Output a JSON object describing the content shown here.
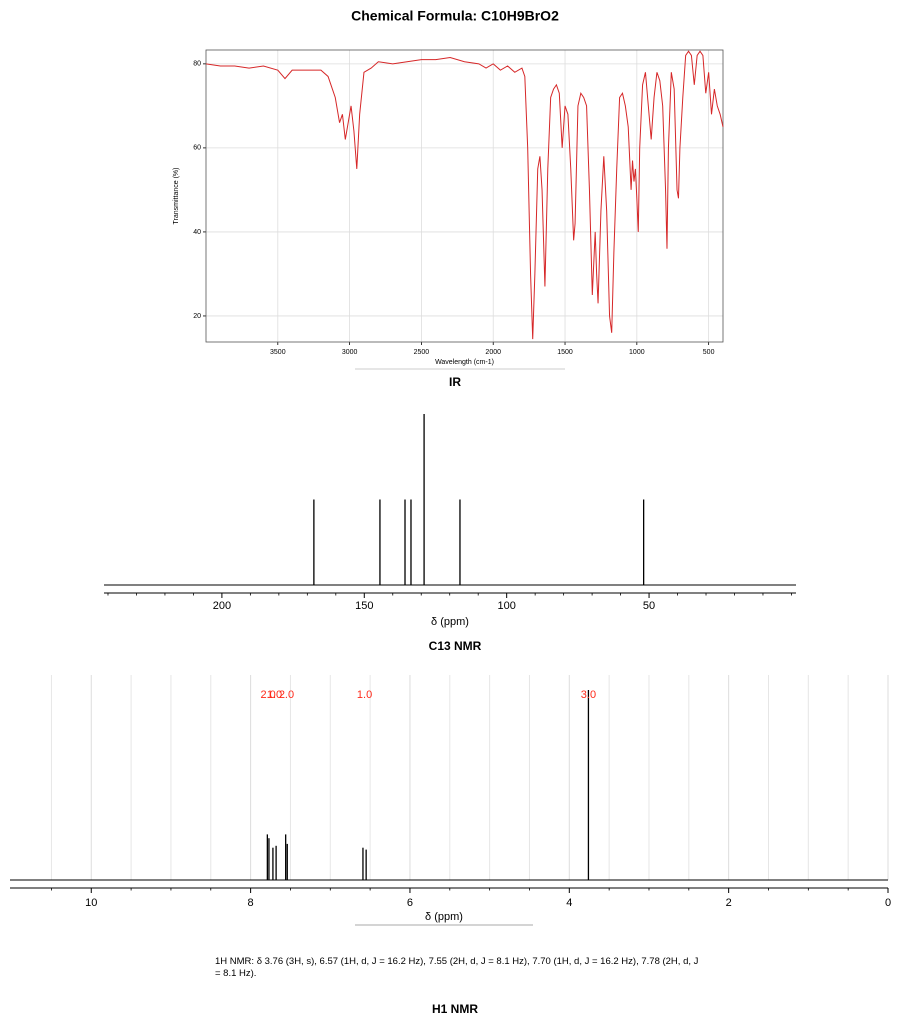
{
  "title": "Chemical Formula: C10H9BrO2",
  "description": "1H NMR: δ 3.76 (3H, s), 6.57 (1H, d, J = 16.2 Hz), 7.55 (2H, d, J = 8.1 Hz), 7.70 (1H, d, J = 16.2 Hz), 7.78 (2H, d, J = 8.1 Hz).",
  "chart_data": [
    {
      "type": "line",
      "caption": "IR",
      "x_label": "Wavelength (cm-1)",
      "y_label": "Transmittance (%)",
      "color": "#d62728",
      "xlim": [
        4000,
        400
      ],
      "xticks": [
        3500,
        3000,
        2500,
        2000,
        1500,
        1000,
        500
      ],
      "ylim": [
        13.8,
        83.3
      ],
      "yticks": [
        20,
        40,
        60,
        80
      ],
      "grid": true,
      "x": [
        4000,
        3900,
        3800,
        3700,
        3600,
        3500,
        3450,
        3400,
        3300,
        3200,
        3150,
        3100,
        3070,
        3050,
        3030,
        3010,
        2990,
        2970,
        2950,
        2930,
        2900,
        2850,
        2800,
        2700,
        2600,
        2500,
        2400,
        2300,
        2200,
        2100,
        2050,
        2000,
        1950,
        1900,
        1850,
        1800,
        1780,
        1760,
        1740,
        1725,
        1710,
        1690,
        1675,
        1660,
        1640,
        1620,
        1600,
        1580,
        1560,
        1540,
        1520,
        1500,
        1480,
        1460,
        1440,
        1430,
        1410,
        1390,
        1370,
        1350,
        1330,
        1310,
        1290,
        1280,
        1270,
        1250,
        1230,
        1210,
        1190,
        1175,
        1160,
        1140,
        1120,
        1100,
        1080,
        1060,
        1040,
        1030,
        1020,
        1010,
        1000,
        990,
        980,
        960,
        940,
        920,
        900,
        880,
        860,
        840,
        820,
        800,
        790,
        780,
        760,
        740,
        720,
        710,
        700,
        680,
        660,
        640,
        620,
        600,
        580,
        560,
        540,
        520,
        500,
        480,
        460,
        440,
        420,
        400
      ],
      "values": [
        80,
        79.5,
        79.5,
        79,
        79.5,
        78.5,
        76.5,
        78.5,
        78.5,
        78.5,
        77,
        72,
        66,
        68,
        62,
        66,
        70,
        64,
        55,
        68,
        78,
        79,
        80.5,
        80,
        80.5,
        81,
        81,
        81.5,
        80.5,
        80,
        79,
        80,
        78.5,
        79.5,
        78,
        79,
        77,
        60,
        30,
        14.5,
        30,
        55,
        58,
        50,
        27,
        55,
        72,
        74,
        75,
        73,
        60,
        70,
        68,
        55,
        38,
        42,
        70,
        73,
        72,
        70,
        50,
        25,
        40,
        30,
        23,
        45,
        58,
        45,
        20,
        16,
        35,
        55,
        72,
        73,
        70,
        65,
        50,
        57,
        52,
        55,
        48,
        40,
        60,
        75,
        78,
        70,
        62,
        72,
        78,
        76,
        70,
        50,
        36,
        60,
        78,
        74,
        50,
        48,
        60,
        72,
        82,
        83,
        82,
        75,
        82,
        83,
        82,
        73,
        78,
        68,
        74,
        70,
        68,
        65
      ]
    },
    {
      "type": "spectrum",
      "caption": "C13 NMR",
      "x_label": "δ (ppm)",
      "color": "#000000",
      "xlim": [
        241.4,
        -1.6
      ],
      "xticks": [
        200,
        150,
        100,
        50
      ],
      "minor_xticks": [
        240,
        230,
        220,
        210,
        190,
        180,
        170,
        160,
        140,
        130,
        120,
        110,
        90,
        80,
        70,
        60,
        40,
        30,
        20,
        10,
        0
      ],
      "x": [
        167.7,
        144.5,
        135.7,
        133.6,
        129.0,
        116.4,
        51.9
      ],
      "values": [
        50,
        50,
        50,
        50,
        100,
        50,
        50
      ]
    },
    {
      "type": "spectrum",
      "caption": "H1 NMR",
      "x_label": "δ (ppm)",
      "color": "#000000",
      "xlim": [
        11.02,
        0
      ],
      "xticks": [
        10,
        8,
        6,
        4,
        2,
        0
      ],
      "grid": true,
      "minor_xticks": [
        10.5,
        9.5,
        9,
        8.5,
        7.5,
        7,
        6.5,
        5.5,
        5,
        4.5,
        3.5,
        3,
        2.5,
        1.5,
        1,
        0.5
      ],
      "x": [
        7.79,
        7.77,
        7.72,
        7.68,
        7.56,
        7.54,
        6.59,
        6.55,
        3.76
      ],
      "values": [
        24,
        22,
        17,
        18,
        24,
        19,
        17,
        16,
        100
      ],
      "annotations": [
        {
          "x": 7.78,
          "text": "2.0"
        },
        {
          "x": 7.7,
          "text": "1.0"
        },
        {
          "x": 7.55,
          "text": "2.0"
        },
        {
          "x": 6.57,
          "text": "1.0"
        },
        {
          "x": 3.76,
          "text": "3.0"
        }
      ],
      "annotation_color": "#ff2a1a"
    }
  ]
}
